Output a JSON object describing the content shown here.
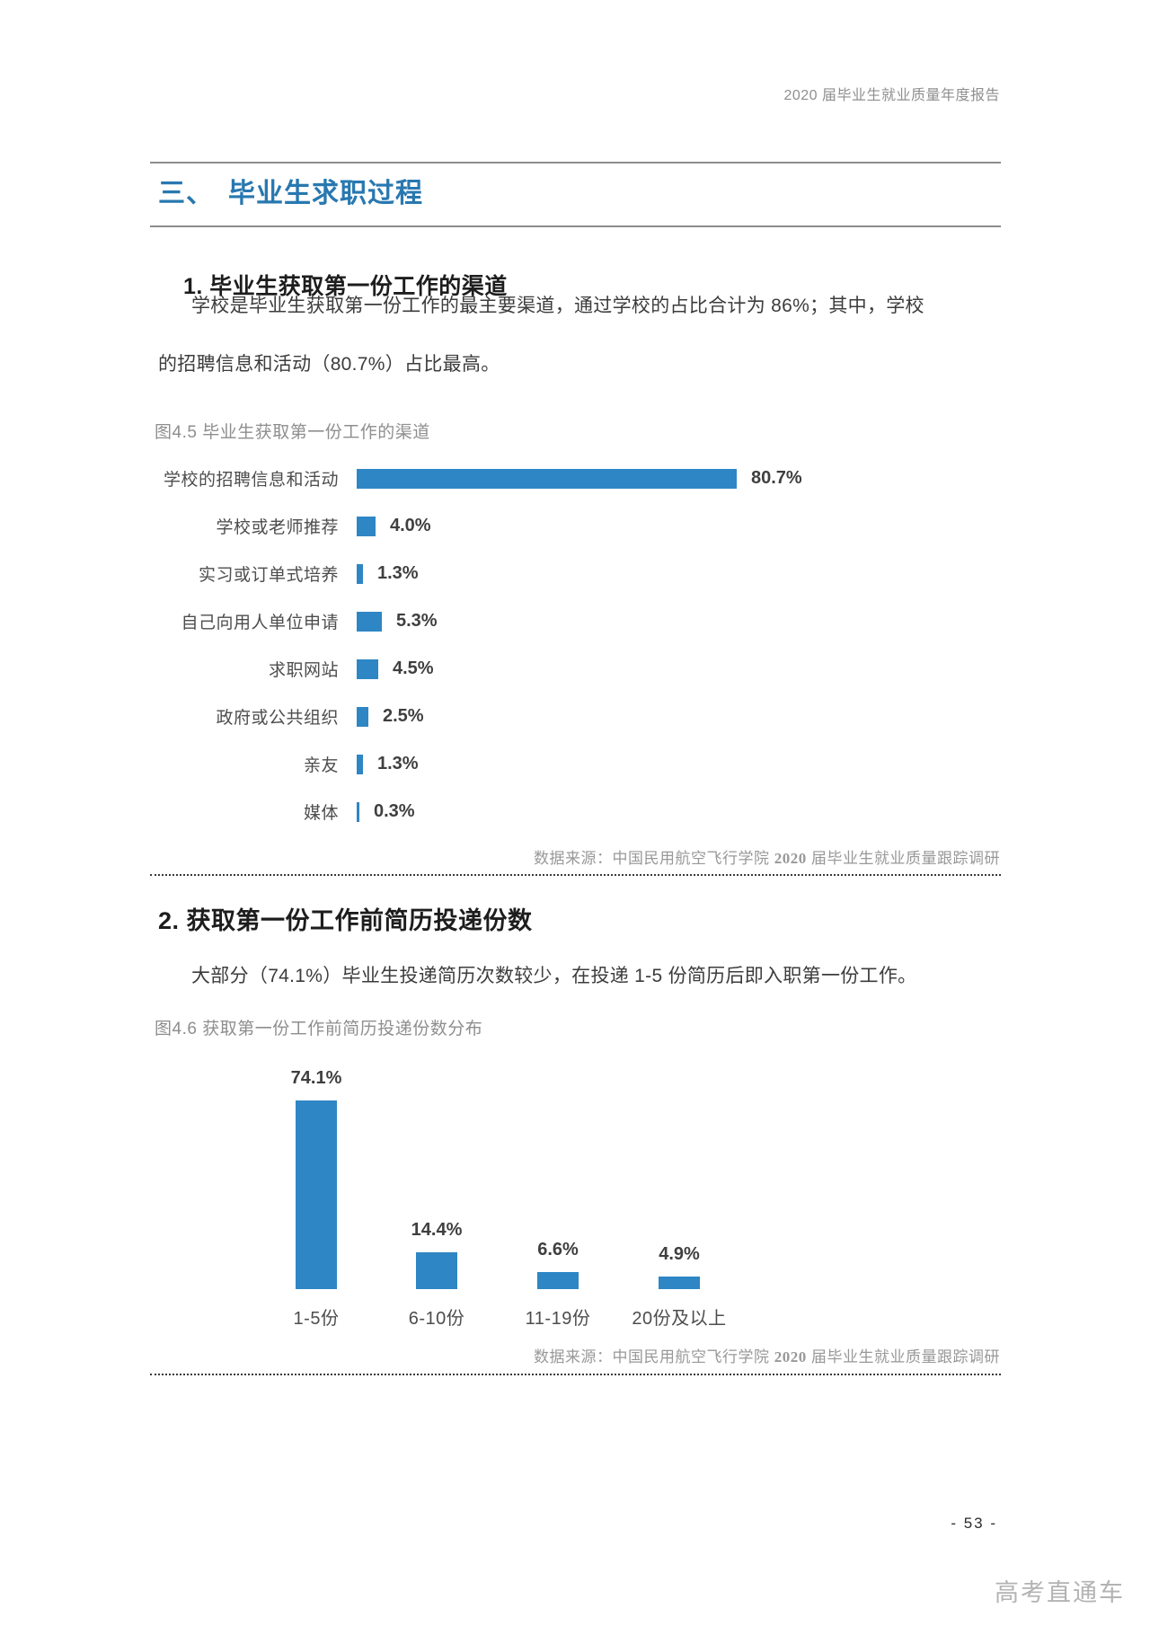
{
  "page": {
    "header_right": "2020 届毕业生就业质量年度报告",
    "page_number": "- 53 -",
    "watermark": "高考直通车"
  },
  "section": {
    "title": "三、　毕业生求职过程"
  },
  "sub1": {
    "heading": "1. 毕业生获取第一份工作的渠道",
    "para_line1": "学校是毕业生获取第一份工作的最主要渠道，通过学校的占比合计为 86%；其中，学校",
    "para_line2": "的招聘信息和活动（80.7%）占比最高。",
    "caption": "图4.5 毕业生获取第一份工作的渠道"
  },
  "sub2": {
    "heading": "2. 获取第一份工作前简历投递份数",
    "para": "大部分（74.1%）毕业生投递简历次数较少，在投递 1-5 份简历后即入职第一份工作。",
    "caption": "图4.6 获取第一份工作前简历投递份数分布"
  },
  "source": {
    "pre": "数据来源：中国民用航空飞行学院 ",
    "year": "2020",
    "post": " 届毕业生就业质量跟踪调研"
  },
  "chart_data": [
    {
      "type": "bar",
      "orientation": "horizontal",
      "title": "图4.5 毕业生获取第一份工作的渠道",
      "categories": [
        "学校的招聘信息和活动",
        "学校或老师推荐",
        "实习或订单式培养",
        "自己向用人单位申请",
        "求职网站",
        "政府或公共组织",
        "亲友",
        "媒体"
      ],
      "values": [
        80.7,
        4.0,
        1.3,
        5.3,
        4.5,
        2.5,
        1.3,
        0.3
      ],
      "value_labels": [
        "80.7%",
        "4.0%",
        "1.3%",
        "5.3%",
        "4.5%",
        "2.5%",
        "1.3%",
        "0.3%"
      ],
      "bar_color": "#2e86c4",
      "xlim": [
        0,
        100
      ],
      "grid": false,
      "legend": false,
      "source": "数据来源：中国民用航空飞行学院 2020 届毕业生就业质量跟踪调研"
    },
    {
      "type": "bar",
      "orientation": "vertical",
      "title": "图4.6 获取第一份工作前简历投递份数分布",
      "categories": [
        "1-5份",
        "6-10份",
        "11-19份",
        "20份及以上"
      ],
      "values": [
        74.1,
        14.4,
        6.6,
        4.9
      ],
      "value_labels": [
        "74.1%",
        "14.4%",
        "6.6%",
        "4.9%"
      ],
      "bar_color": "#2e86c4",
      "ylim": [
        0,
        80
      ],
      "grid": false,
      "legend": false,
      "source": "数据来源：中国民用航空飞行学院 2020 届毕业生就业质量跟踪调研"
    }
  ]
}
